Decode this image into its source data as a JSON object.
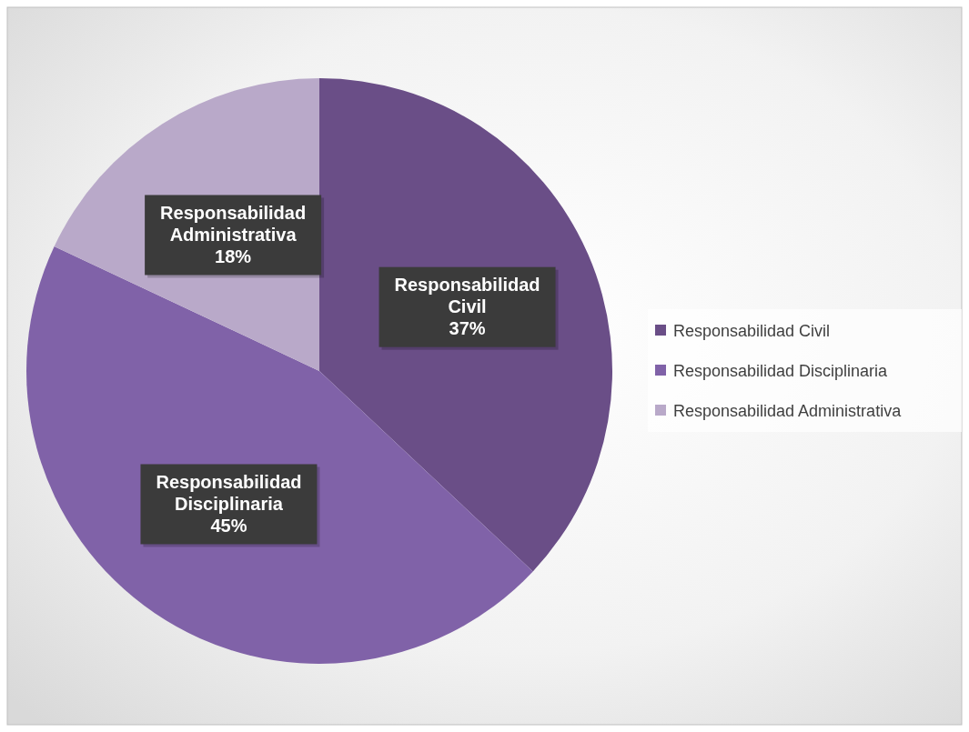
{
  "chart_data": {
    "type": "pie",
    "categories": [
      "Responsabilidad Civil",
      "Responsabilidad Disciplinaria",
      "Responsabilidad Administrativa"
    ],
    "values": [
      37,
      45,
      18
    ],
    "colors": [
      "#6a4e87",
      "#8062a8",
      "#b9a9c9"
    ],
    "value_labels": [
      "37%",
      "45%",
      "18%"
    ],
    "legend": "right"
  }
}
